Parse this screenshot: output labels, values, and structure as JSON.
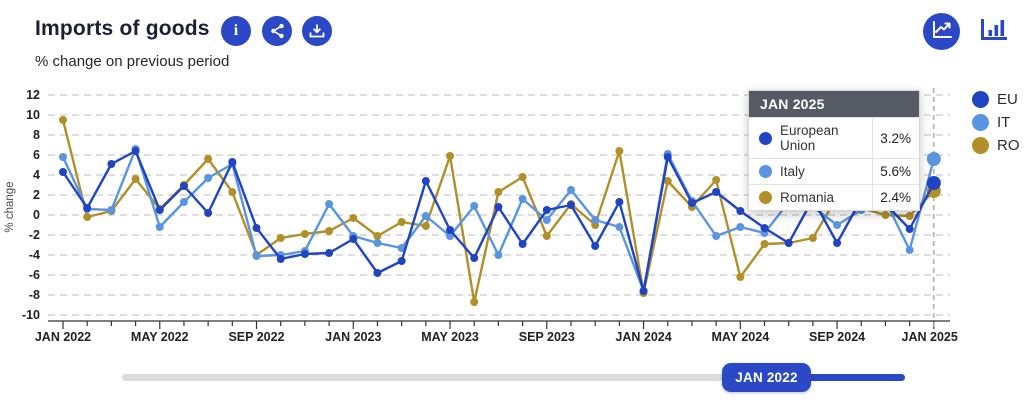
{
  "header": {
    "title": "Imports of goods",
    "subtitle": "% change on previous period",
    "toolbar": {
      "info": "information",
      "share": "share",
      "download": "download"
    },
    "view_toggle": {
      "line_view": "line chart",
      "bar_view": "bar chart"
    }
  },
  "legend": {
    "items": [
      {
        "label": "EU",
        "color": "#2144c4"
      },
      {
        "label": "IT",
        "color": "#5a95e0"
      },
      {
        "label": "RO",
        "color": "#b1902a"
      }
    ]
  },
  "tooltip": {
    "title": "JAN 2025",
    "rows": [
      {
        "label": "European Union",
        "value": "3.2%",
        "color": "#2144c4"
      },
      {
        "label": "Italy",
        "value": "5.6%",
        "color": "#5a95e0"
      },
      {
        "label": "Romania",
        "value": "2.4%",
        "color": "#b1902a"
      }
    ]
  },
  "slider": {
    "label": "JAN 2022"
  },
  "chart_data": {
    "type": "line",
    "title": "Imports of goods",
    "ylabel": "% change",
    "ylim": [
      -10,
      12
    ],
    "ytick_step": 2,
    "grid": true,
    "legend_position": "right",
    "highlight_x": "JAN 2025",
    "xtick_label_every": 4,
    "x": [
      "JAN 2022",
      "FEB 2022",
      "MAR 2022",
      "APR 2022",
      "MAY 2022",
      "JUN 2022",
      "JUL 2022",
      "AUG 2022",
      "SEP 2022",
      "OCT 2022",
      "NOV 2022",
      "DEC 2022",
      "JAN 2023",
      "FEB 2023",
      "MAR 2023",
      "APR 2023",
      "MAY 2023",
      "JUN 2023",
      "JUL 2023",
      "AUG 2023",
      "SEP 2023",
      "OCT 2023",
      "NOV 2023",
      "DEC 2023",
      "JAN 2024",
      "FEB 2024",
      "MAR 2024",
      "APR 2024",
      "MAY 2024",
      "JUN 2024",
      "JUL 2024",
      "AUG 2024",
      "SEP 2024",
      "OCT 2024",
      "NOV 2024",
      "DEC 2024",
      "JAN 2025"
    ],
    "series": [
      {
        "name": "Romania",
        "short": "RO",
        "color": "#b1902a",
        "values": [
          9.5,
          -0.2,
          0.4,
          3.6,
          0.6,
          3.0,
          5.6,
          2.3,
          -4.0,
          -2.3,
          -1.9,
          -1.6,
          -0.3,
          -2.1,
          -0.7,
          -1.1,
          5.9,
          -8.7,
          2.3,
          3.8,
          -2.1,
          1.1,
          -1.0,
          6.4,
          -7.8,
          3.4,
          0.8,
          3.5,
          -6.2,
          -2.9,
          -2.8,
          -2.3,
          1.8,
          0.7,
          0.0,
          -0.1,
          2.4
        ]
      },
      {
        "name": "Italy",
        "short": "IT",
        "color": "#5a95e0",
        "values": [
          5.8,
          0.6,
          0.5,
          6.6,
          -1.2,
          1.3,
          3.7,
          5.1,
          -4.1,
          -4.0,
          -3.6,
          1.1,
          -2.1,
          -2.8,
          -3.3,
          -0.1,
          -2.1,
          0.9,
          -4.0,
          1.6,
          -0.5,
          2.5,
          -0.5,
          -1.2,
          -7.6,
          6.1,
          1.4,
          -2.1,
          -1.2,
          -1.8,
          1.3,
          0.8,
          -1.0,
          0.5,
          1.4,
          -3.5,
          5.6
        ]
      },
      {
        "name": "European Union",
        "short": "EU",
        "color": "#2144c4",
        "values": [
          4.3,
          0.7,
          5.1,
          6.4,
          0.5,
          2.9,
          0.2,
          5.3,
          -1.3,
          -4.4,
          -3.9,
          -3.8,
          -2.4,
          -5.8,
          -4.6,
          3.4,
          -1.5,
          -4.3,
          0.8,
          -2.9,
          0.5,
          1.0,
          -3.1,
          1.3,
          -7.6,
          5.8,
          1.2,
          2.3,
          0.4,
          -1.3,
          -2.8,
          1.6,
          -2.8,
          1.6,
          1.1,
          -1.4,
          3.2
        ]
      }
    ]
  }
}
